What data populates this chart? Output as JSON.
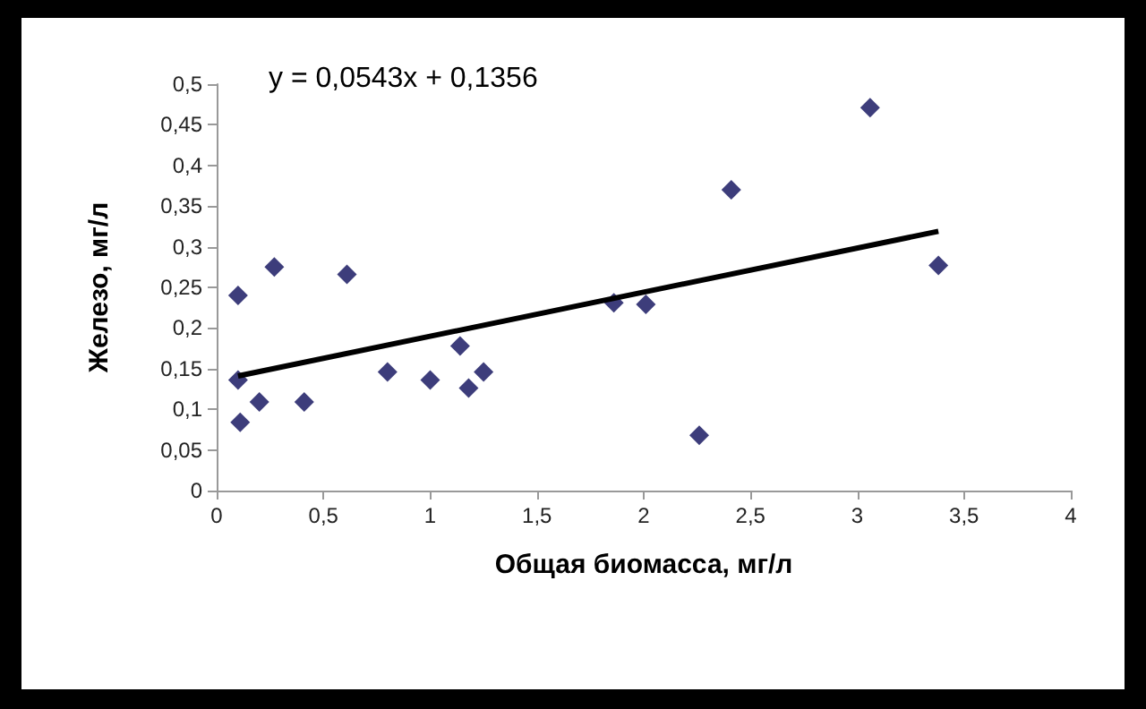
{
  "chart_data": {
    "type": "scatter",
    "xlabel": "Общая биомасса, мг/л",
    "ylabel": "Железо, мг/л",
    "annotations": [
      "y = 0,0543x + 0,1356"
    ],
    "series": [
      {
        "color": "#0c0c5a",
        "marker": "diamond",
        "x": [
          0.1,
          0.27,
          0.61,
          0.1,
          0.2,
          0.11,
          0.41,
          0.8,
          1.0,
          1.14,
          1.18,
          1.25,
          1.86,
          2.01,
          2.26,
          2.41,
          3.06,
          3.38
        ],
        "values": [
          0.24,
          0.275,
          0.266,
          0.136,
          0.109,
          0.084,
          0.109,
          0.146,
          0.136,
          0.178,
          0.126,
          0.146,
          0.231,
          0.229,
          0.068,
          0.37,
          0.471,
          0.277
        ]
      },
      {
        "type": "line",
        "color": "#000000",
        "marker": "none",
        "x": [
          0.1,
          3.38
        ],
        "values": [
          0.141,
          0.319
        ]
      }
    ],
    "xlim": [
      0,
      4
    ],
    "ylim": [
      0,
      0.5
    ],
    "xticks": [
      0,
      {
        "value": 0.5,
        "label": "0,5"
      },
      1,
      {
        "value": 1.5,
        "label": "1,5"
      },
      2,
      {
        "value": 2.5,
        "label": "2,5"
      },
      3,
      {
        "value": 3.5,
        "label": "3,5"
      },
      4
    ],
    "yticks": [
      0,
      {
        "value": 0.05,
        "label": "0,05"
      },
      {
        "value": 0.1,
        "label": "0,1"
      },
      {
        "value": 0.15,
        "label": "0,15"
      },
      {
        "value": 0.2,
        "label": "0,2"
      },
      {
        "value": 0.25,
        "label": "0,25"
      },
      {
        "value": 0.3,
        "label": "0,3"
      },
      {
        "value": 0.35,
        "label": "0,35"
      },
      {
        "value": 0.4,
        "label": "0,4"
      },
      {
        "value": 0.45,
        "label": "0,45"
      },
      {
        "value": 0.5,
        "label": "0,5"
      }
    ],
    "grid": false
  }
}
